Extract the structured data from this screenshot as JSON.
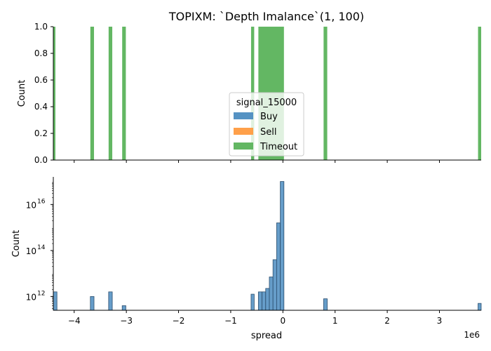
{
  "chart_data": [
    {
      "type": "bar",
      "title": "TOPIXM: `Depth Imalance`(1, 100)",
      "xlabel": "",
      "ylabel": "Count",
      "yscale": "linear",
      "ylim": [
        0,
        1.0
      ],
      "xlim": [
        -4.4,
        3.8
      ],
      "ytick_labels": [
        "0.0",
        "0.2",
        "0.4",
        "0.6",
        "0.8",
        "1.0"
      ],
      "ytick_values": [
        0,
        0.2,
        0.4,
        0.6,
        0.8,
        1.0
      ],
      "legend": {
        "title": "signal_15000",
        "placement": "center",
        "entries": [
          {
            "label": "Buy",
            "color": "#5592c3"
          },
          {
            "label": "Sell",
            "color": "#ffa04a"
          },
          {
            "label": "Timeout",
            "color": "#63b763"
          }
        ]
      },
      "series": [
        {
          "name": "Timeout",
          "color": "#63b763",
          "bars": [
            {
              "x0": -4.4,
              "x1": -4.36,
              "value": 1
            },
            {
              "x0": -3.69,
              "x1": -3.62,
              "value": 1
            },
            {
              "x0": -3.34,
              "x1": -3.27,
              "value": 1
            },
            {
              "x0": -3.08,
              "x1": -3.01,
              "value": 1
            },
            {
              "x0": -0.61,
              "x1": -0.55,
              "value": 1
            },
            {
              "x0": -0.47,
              "x1": 0.02,
              "value": 1
            },
            {
              "x0": 0.78,
              "x1": 0.85,
              "value": 1
            },
            {
              "x0": 3.74,
              "x1": 3.8,
              "value": 1
            }
          ]
        }
      ]
    },
    {
      "type": "bar",
      "title": "",
      "xlabel": "spread",
      "ylabel": "Count",
      "yscale": "log",
      "ylim_log10": [
        11.4,
        17.2
      ],
      "xlim": [
        -4.4,
        3.8
      ],
      "x_offset_label": "1e6",
      "xtick_values": [
        -4,
        -3,
        -2,
        -1,
        0,
        1,
        2,
        3
      ],
      "xtick_labels": [
        "−4",
        "−3",
        "−2",
        "−1",
        "0",
        "1",
        "2",
        "3"
      ],
      "ytick_base": "10",
      "ytick_exponents": [
        "12",
        "14",
        "16"
      ],
      "ytick_values_log10": [
        12,
        14,
        16
      ],
      "series": [
        {
          "name": "Buy",
          "color": "#5592c3",
          "bars_log10": [
            {
              "x0": -4.4,
              "x1": -4.33,
              "value": 12.2
            },
            {
              "x0": -3.69,
              "x1": -3.62,
              "value": 12.0
            },
            {
              "x0": -3.34,
              "x1": -3.27,
              "value": 12.2
            },
            {
              "x0": -3.08,
              "x1": -3.01,
              "value": 11.6
            },
            {
              "x0": -0.61,
              "x1": -0.55,
              "value": 12.1
            },
            {
              "x0": -0.47,
              "x1": -0.4,
              "value": 12.2
            },
            {
              "x0": -0.4,
              "x1": -0.33,
              "value": 12.2
            },
            {
              "x0": -0.33,
              "x1": -0.26,
              "value": 12.35
            },
            {
              "x0": -0.26,
              "x1": -0.19,
              "value": 12.85
            },
            {
              "x0": -0.19,
              "x1": -0.12,
              "value": 13.6
            },
            {
              "x0": -0.12,
              "x1": -0.05,
              "value": 15.2
            },
            {
              "x0": -0.05,
              "x1": 0.02,
              "value": 17.0
            },
            {
              "x0": 0.78,
              "x1": 0.85,
              "value": 11.9
            },
            {
              "x0": 3.74,
              "x1": 3.8,
              "value": 11.7
            }
          ]
        }
      ]
    }
  ]
}
